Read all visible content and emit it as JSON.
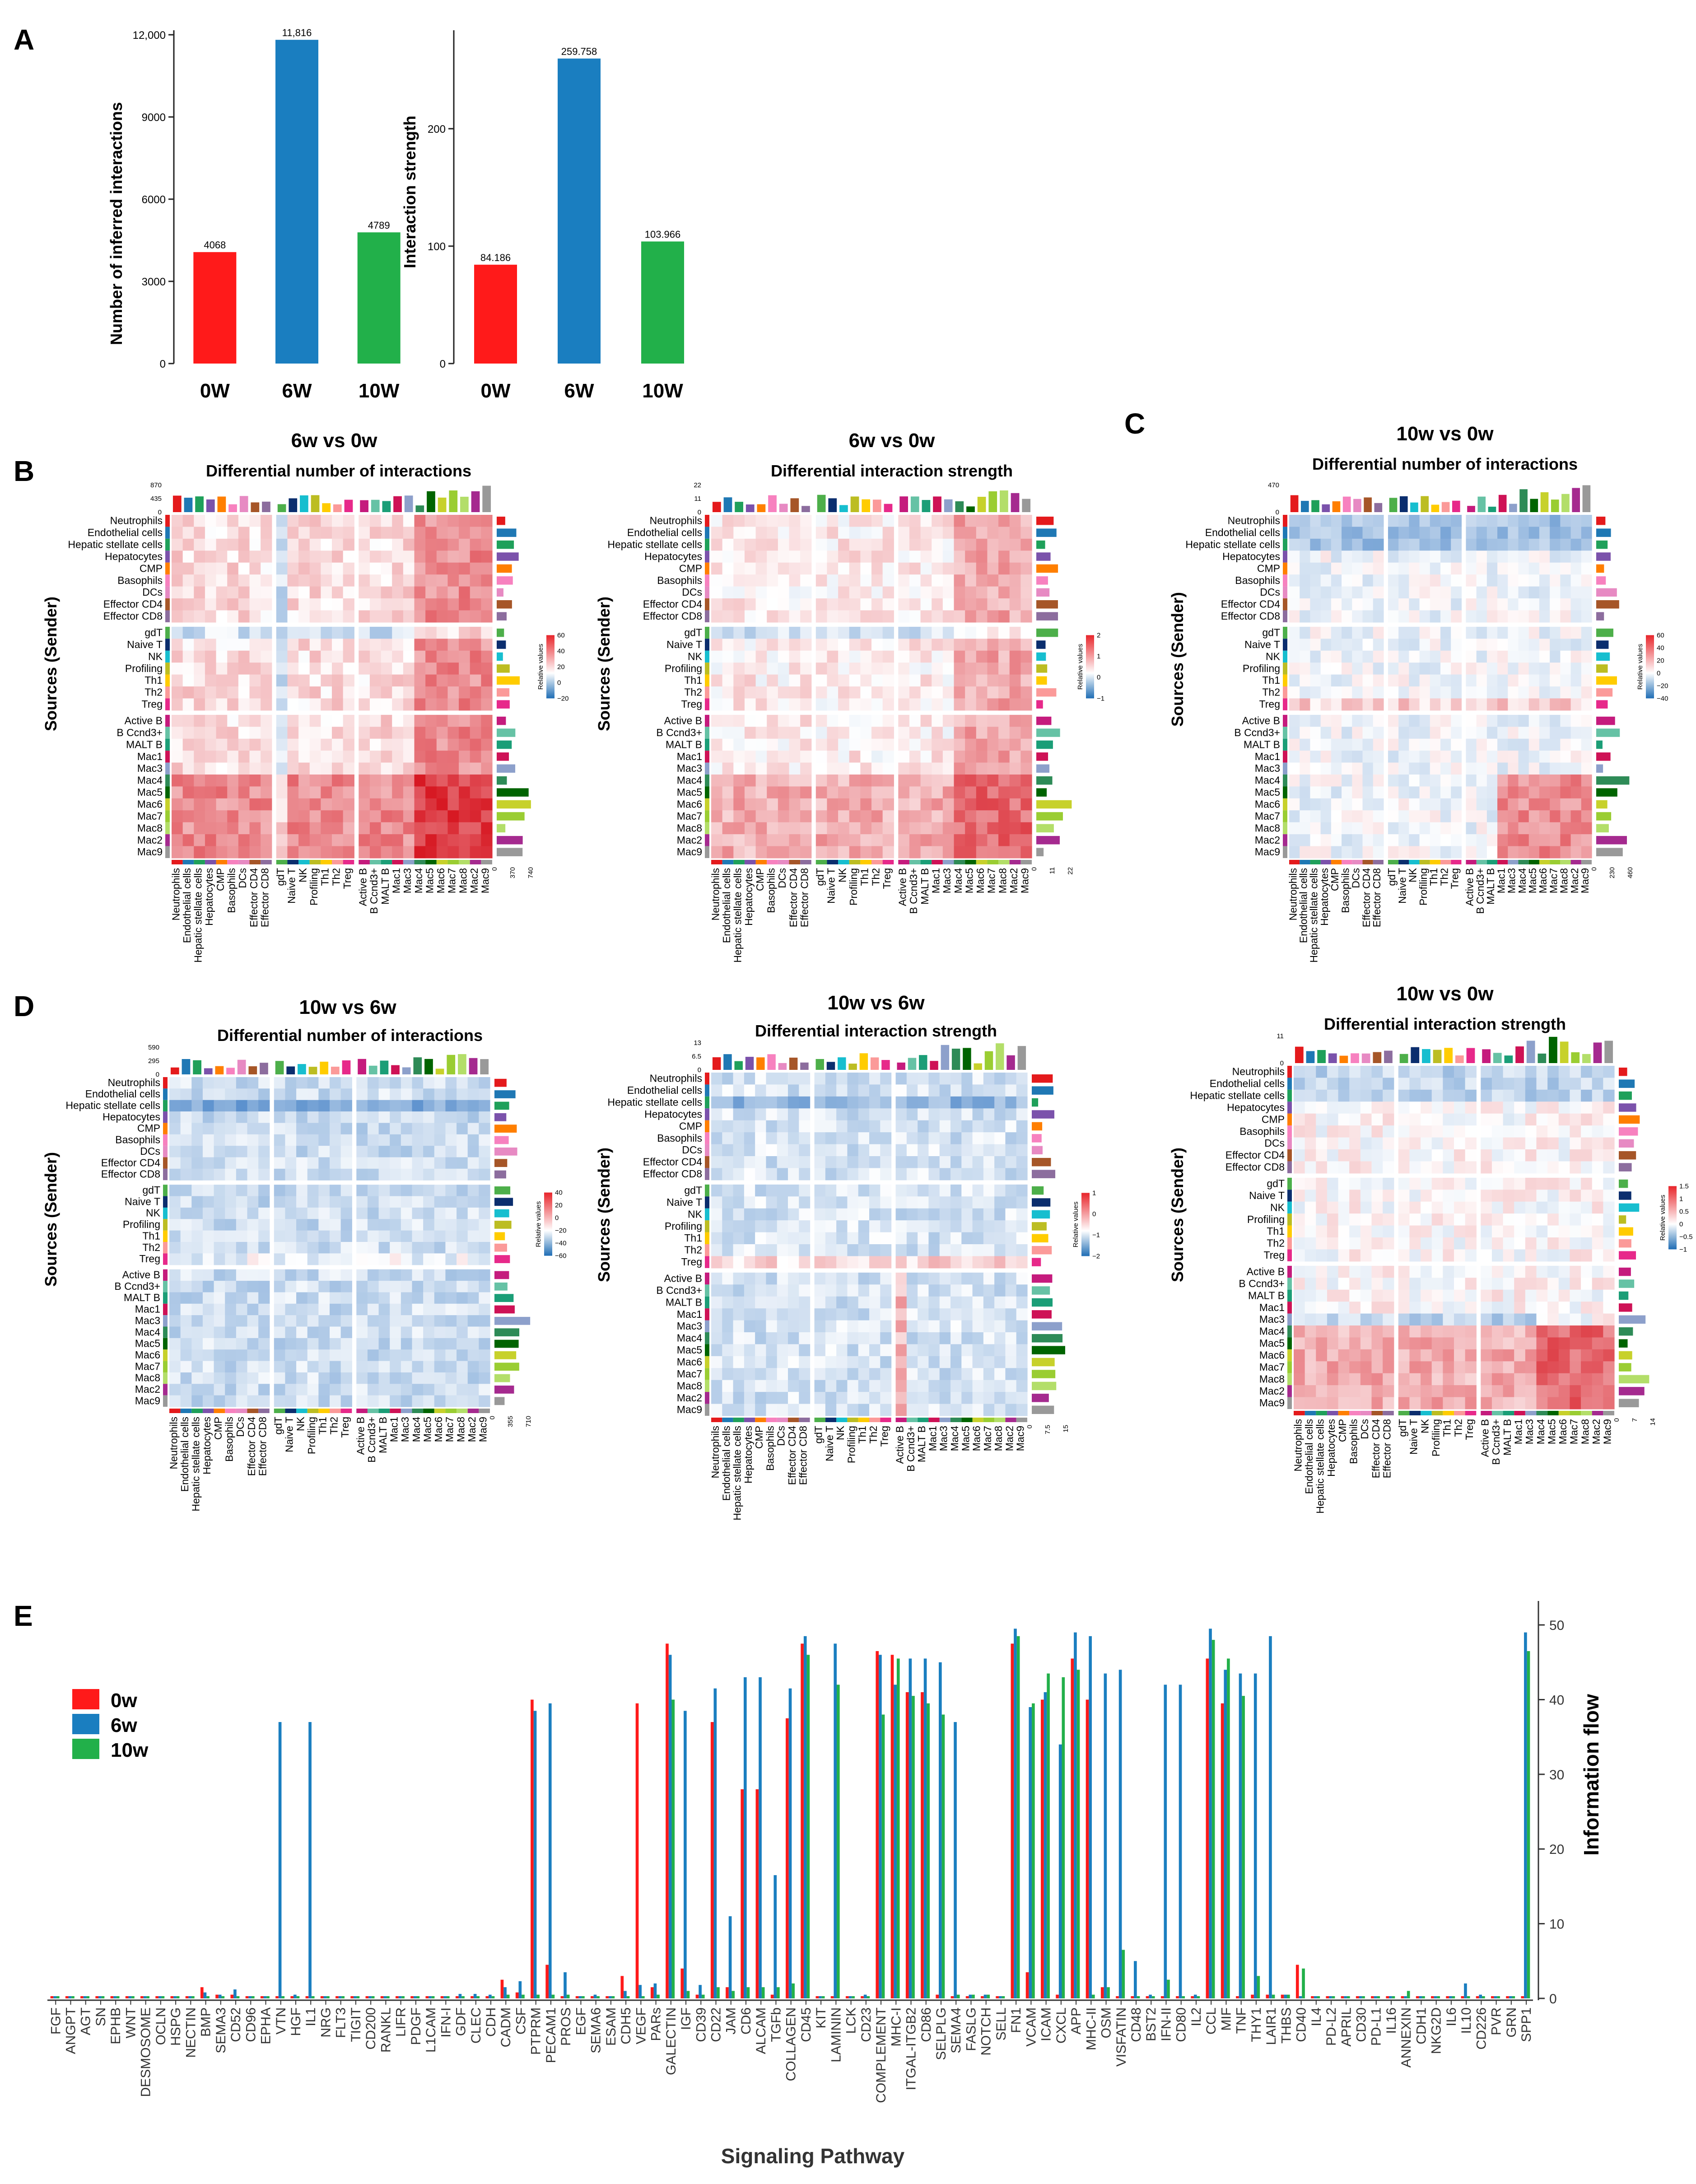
{
  "panels": {
    "A": "A",
    "B": "B",
    "C": "C",
    "D": "D",
    "E": "E"
  },
  "colors": {
    "w0": "#ff1a1a",
    "w6": "#1a7ec0",
    "w10": "#22b04a",
    "pos": "#e8252b",
    "neg": "#1f6db5"
  },
  "cell_types": [
    "Neutrophils",
    "Endothelial cells",
    "Hepatic stellate cells",
    "Hepatocytes",
    "CMP",
    "Basophils",
    "DCs",
    "Effector CD4",
    "Effector CD8",
    "gdT",
    "Naive T",
    "NK",
    "Profiling",
    "Th1",
    "Th2",
    "Treg",
    "Active B",
    "B Ccnd3+",
    "MALT B",
    "Mac1",
    "Mac3",
    "Mac4",
    "Mac5",
    "Mac6",
    "Mac7",
    "Mac8",
    "Mac2",
    "Mac9"
  ],
  "cell_colors": [
    "#e41a1c",
    "#1f78b4",
    "#1fa05a",
    "#7b52ab",
    "#ff7f00",
    "#f781bf",
    "#e78ac3",
    "#a65628",
    "#8c6d9e",
    "#4daf4a",
    "#0b2e6e",
    "#17becf",
    "#bcbd22",
    "#ffcc00",
    "#fb9a99",
    "#e7298a",
    "#c51b7d",
    "#66c2a5",
    "#1b9e77",
    "#ce1256",
    "#8da0cb",
    "#2e8b57",
    "#006400",
    "#c7d12b",
    "#9acd32",
    "#b3de69",
    "#a52a8f",
    "#999999"
  ],
  "chart_data": [
    {
      "type": "bar",
      "title": "",
      "ylabel": "Number of inferred interactions",
      "categories": [
        "0W",
        "6W",
        "10W"
      ],
      "values": [
        4068,
        11816,
        4789
      ],
      "value_labels": [
        "4068",
        "11,816",
        "4789"
      ],
      "ylim": [
        0,
        12000
      ],
      "yticks": [
        "0",
        "3000",
        "6000",
        "9000",
        "12,000"
      ]
    },
    {
      "type": "bar",
      "title": "",
      "ylabel": "Interaction strength",
      "categories": [
        "0W",
        "6W",
        "10W"
      ],
      "values": [
        84.186,
        259.758,
        103.966
      ],
      "value_labels": [
        "84.186",
        "259.758",
        "103.966"
      ],
      "ylim": [
        0,
        280
      ],
      "yticks": [
        "0",
        "100",
        "200"
      ]
    },
    {
      "type": "heatmap",
      "panel": "B",
      "comparison": "6w vs 0w",
      "title": "Differential number of interactions",
      "top_ticks": [
        "870",
        "435",
        "0"
      ],
      "right_ticks": [
        "0",
        "370",
        "740"
      ],
      "legend_title": "Relative values",
      "legend_ticks": [
        "60",
        "40",
        "20",
        "0",
        "−20"
      ]
    },
    {
      "type": "heatmap",
      "panel": "B",
      "comparison": "6w vs 0w",
      "title": "Differential interaction strength",
      "top_ticks": [
        "22",
        "11",
        "0"
      ],
      "right_ticks": [
        "0",
        "11",
        "22"
      ],
      "legend_title": "Relative values",
      "legend_ticks": [
        "2",
        "1",
        "0",
        "−1"
      ]
    },
    {
      "type": "heatmap",
      "panel": "C",
      "comparison": "10w vs  0w",
      "title": "Differential number of interactions",
      "top_ticks": [
        "470",
        "0"
      ],
      "right_ticks": [
        "0",
        "230",
        "460"
      ],
      "legend_title": "Relative values",
      "legend_ticks": [
        "60",
        "40",
        "20",
        "0",
        "−20",
        "−40"
      ]
    },
    {
      "type": "heatmap",
      "panel": "D",
      "comparison": "10w vs 6w",
      "title": "Differential number of interactions",
      "top_ticks": [
        "590",
        "295",
        "0"
      ],
      "right_ticks": [
        "0",
        "355",
        "710"
      ],
      "legend_title": "Relative values",
      "legend_ticks": [
        "40",
        "20",
        "0",
        "−20",
        "−40",
        "−60"
      ]
    },
    {
      "type": "heatmap",
      "panel": "D",
      "comparison": "10w vs 6w",
      "title": "Differential interaction strength",
      "top_ticks": [
        "13",
        "6.5",
        "0"
      ],
      "right_ticks": [
        "0",
        "7.5",
        "15"
      ],
      "legend_title": "Relative values",
      "legend_ticks": [
        "1",
        "0",
        "−1",
        "−2"
      ]
    },
    {
      "type": "heatmap",
      "panel": "D",
      "comparison": "10w vs 0w",
      "title": "Differential interaction strength",
      "top_ticks": [
        "11",
        "0"
      ],
      "right_ticks": [
        "0",
        "7",
        "14"
      ],
      "legend_title": "Relative values",
      "legend_ticks": [
        "1.5",
        "1",
        "0.5",
        "0",
        "−0.5",
        "−1"
      ]
    },
    {
      "type": "bar",
      "title": "",
      "xlabel": "Signaling Pathway",
      "ylabel": "Information flow",
      "ylim": [
        0,
        52
      ],
      "yticks": [
        "0",
        "10",
        "20",
        "30",
        "40",
        "50"
      ],
      "legend": [
        "0w",
        "6w",
        "10w"
      ],
      "categories": [
        "FGF",
        "ANGPT",
        "AGT",
        "SN",
        "EPHB",
        "WNT",
        "DESMOSOME",
        "OCLN",
        "HSPG",
        "NECTIN",
        "BMP",
        "SEMA3",
        "CD52",
        "CD96",
        "EPHA",
        "VTN",
        "HGF",
        "IL1",
        "NRG",
        "FLT3",
        "TIGIT",
        "CD200",
        "RANKL",
        "LIFR",
        "PDGF",
        "L1CAM",
        "IFN-I",
        "GDF",
        "CLEC",
        "CDH",
        "CADM",
        "CSF",
        "PTPRM",
        "PECAM1",
        "PROS",
        "EGF",
        "SEMA6",
        "ESAM",
        "CDH5",
        "VEGF",
        "PARs",
        "GALECTIN",
        "IGF",
        "CD39",
        "CD22",
        "JAM",
        "CD6",
        "ALCAM",
        "TGFb",
        "COLLAGEN",
        "CD45",
        "KIT",
        "LAMININ",
        "LCK",
        "CD23",
        "COMPLEMENT",
        "MHC-I",
        "ITGAL-ITGB2",
        "CD86",
        "SELPLG",
        "SEMA4",
        "FASLG",
        "NOTCH",
        "SELL",
        "FN1",
        "VCAM",
        "ICAM",
        "CXCL",
        "APP",
        "MHC-II",
        "OSM",
        "VISFATIN",
        "CD48",
        "BST2",
        "IFN-II",
        "CD80",
        "IL2",
        "CCL",
        "MIF",
        "TNF",
        "THY1",
        "LAIR1",
        "THBS",
        "CD40",
        "IL4",
        "PD-L2",
        "APRIL",
        "CD30",
        "PD-L1",
        "IL16",
        "ANNEXIN",
        "CDH1",
        "NKG2D",
        "IL6",
        "IL10",
        "CD226",
        "PVR",
        "GRN",
        "SPP1"
      ],
      "series": [
        {
          "name": "0w",
          "values": [
            0.3,
            0.3,
            0.3,
            0.3,
            0.3,
            0.3,
            0.3,
            0.3,
            0.3,
            0.3,
            1.5,
            0.5,
            0.5,
            0.3,
            0.3,
            0.3,
            0.3,
            0.3,
            0.3,
            0.3,
            0.3,
            0.3,
            0.3,
            0.3,
            0.3,
            0.3,
            0.3,
            0.3,
            0.3,
            0.3,
            2.5,
            0.8,
            40,
            4.5,
            0.3,
            0.3,
            0.3,
            0.3,
            3.0,
            39.5,
            1.5,
            47.5,
            4.0,
            0.5,
            37.0,
            1.5,
            28.0,
            28.0,
            0.5,
            37.5,
            47.5,
            0.3,
            0.3,
            0.3,
            0.3,
            46.5,
            46.0,
            41.0,
            41.0,
            0.5,
            0.3,
            0.3,
            0.3,
            0.3,
            47.5,
            3.5,
            40.0,
            0.5,
            45.5,
            40.0,
            1.5,
            0.3,
            0.3,
            0.3,
            0.3,
            0.3,
            0.3,
            45.5,
            39.5,
            0.3,
            0.5,
            0.5,
            0.5,
            4.5,
            0.3,
            0.3,
            0.3,
            0.3,
            0.3,
            0.3,
            0.3,
            0.3,
            0.3,
            0.3,
            0.3,
            0.3,
            0.3,
            0.3,
            0.3
          ]
        },
        {
          "name": "6w",
          "values": [
            0.3,
            0.3,
            0.3,
            0.3,
            0.3,
            0.3,
            0.3,
            0.3,
            0.3,
            0.3,
            0.8,
            0.5,
            1.2,
            0.3,
            0.3,
            37.0,
            0.5,
            37.0,
            0.3,
            0.3,
            0.3,
            0.3,
            0.3,
            0.3,
            0.3,
            0.3,
            0.3,
            0.6,
            0.6,
            0.5,
            1.5,
            2.3,
            38.5,
            39.5,
            3.5,
            0.3,
            0.5,
            0.3,
            1.0,
            1.8,
            2.0,
            46.0,
            38.5,
            1.8,
            41.5,
            11.0,
            43.0,
            43.0,
            16.5,
            41.5,
            48.5,
            0.3,
            47.5,
            0.3,
            0.5,
            46.0,
            42.0,
            45.5,
            45.5,
            45.0,
            37.0,
            0.5,
            0.5,
            0.3,
            49.5,
            39.0,
            41.0,
            34.0,
            49.0,
            48.5,
            43.5,
            44.0,
            5.0,
            0.5,
            42.0,
            42.0,
            0.5,
            49.5,
            44.0,
            43.5,
            43.5,
            48.5,
            0.5,
            0.3,
            0.3,
            0.3,
            0.3,
            0.3,
            0.3,
            0.3,
            0.3,
            0.3,
            0.3,
            0.3,
            2.0,
            0.5,
            0.3,
            0.3,
            49.0
          ]
        },
        {
          "name": "10w",
          "values": [
            0.3,
            0.3,
            0.3,
            0.3,
            0.3,
            0.3,
            0.3,
            0.3,
            0.3,
            0.3,
            0.3,
            0.3,
            0.3,
            0.3,
            0.3,
            0.3,
            0.3,
            0.3,
            0.3,
            0.3,
            0.3,
            0.3,
            0.3,
            0.3,
            0.3,
            0.3,
            0.3,
            0.3,
            0.3,
            0.3,
            0.5,
            0.5,
            0.5,
            0.5,
            0.5,
            0.3,
            0.3,
            0.3,
            0.3,
            0.3,
            0.5,
            40.0,
            1.0,
            0.5,
            1.5,
            1.0,
            1.5,
            1.5,
            1.5,
            2.0,
            46.0,
            0.3,
            42.0,
            0.3,
            0.3,
            38.0,
            45.5,
            40.5,
            39.5,
            38.0,
            0.5,
            0.5,
            0.5,
            0.3,
            48.5,
            39.5,
            43.5,
            43.0,
            44.0,
            0.5,
            1.5,
            6.5,
            0.3,
            0.3,
            2.5,
            0.3,
            0.3,
            48.0,
            45.5,
            40.5,
            3.0,
            0.5,
            0.5,
            4.0,
            0.3,
            0.3,
            0.3,
            0.3,
            0.3,
            0.3,
            1.0,
            0.3,
            0.3,
            0.3,
            0.3,
            0.3,
            0.3,
            0.3,
            46.5
          ]
        }
      ]
    }
  ]
}
